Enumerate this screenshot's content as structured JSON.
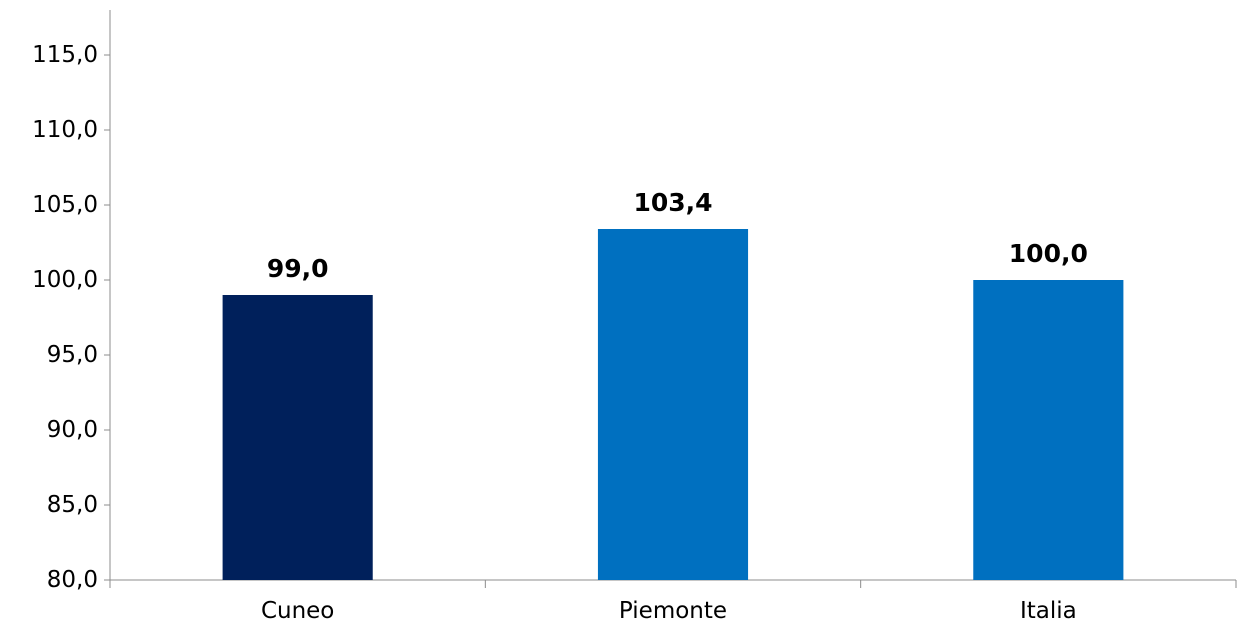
{
  "chart_data": {
    "type": "bar",
    "categories": [
      "Cuneo",
      "Piemonte",
      "Italia"
    ],
    "values": [
      99.0,
      103.4,
      100.0
    ],
    "value_labels": [
      "99,0",
      "103,4",
      "100,0"
    ],
    "bar_colors": [
      "#00205b",
      "#0070c0",
      "#0070c0"
    ],
    "y_ticks": [
      80,
      85,
      90,
      95,
      100,
      105,
      110,
      115
    ],
    "y_tick_labels": [
      "80,0",
      "85,0",
      "90,0",
      "95,0",
      "100,0",
      "105,0",
      "110,0",
      "115,0"
    ],
    "ylim": [
      80,
      118
    ],
    "grid": false,
    "legend": "none",
    "title": "",
    "xlabel": "",
    "ylabel": ""
  }
}
